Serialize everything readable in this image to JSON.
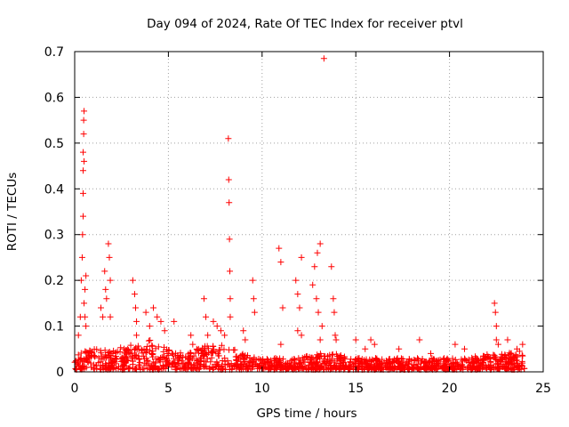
{
  "chart_data": {
    "type": "scatter",
    "title": "Day 094 of 2024, Rate Of TEC Index for receiver ptvl",
    "xlabel": "GPS time / hours",
    "ylabel": "ROTI / TECUs",
    "xlim": [
      0,
      25
    ],
    "ylim": [
      0,
      0.7
    ],
    "xticks": [
      "0",
      "5",
      "10",
      "15",
      "20",
      "25"
    ],
    "yticks": [
      "0",
      "0.1",
      "0.2",
      "0.3",
      "0.4",
      "0.5",
      "0.6",
      "0.7"
    ],
    "grid": true,
    "marker": "+",
    "color": "#ff0000",
    "series": [
      {
        "name": "ROTI",
        "points": [
          [
            0.2,
            0.08
          ],
          [
            0.3,
            0.12
          ],
          [
            0.35,
            0.2
          ],
          [
            0.4,
            0.25
          ],
          [
            0.42,
            0.3
          ],
          [
            0.45,
            0.34
          ],
          [
            0.45,
            0.39
          ],
          [
            0.45,
            0.44
          ],
          [
            0.45,
            0.48
          ],
          [
            0.48,
            0.52
          ],
          [
            0.48,
            0.55
          ],
          [
            0.5,
            0.57
          ],
          [
            0.5,
            0.46
          ],
          [
            0.5,
            0.15
          ],
          [
            0.55,
            0.18
          ],
          [
            0.55,
            0.12
          ],
          [
            0.6,
            0.1
          ],
          [
            0.6,
            0.21
          ],
          [
            1.4,
            0.14
          ],
          [
            1.5,
            0.12
          ],
          [
            1.6,
            0.22
          ],
          [
            1.65,
            0.18
          ],
          [
            1.7,
            0.16
          ],
          [
            1.8,
            0.28
          ],
          [
            1.85,
            0.25
          ],
          [
            1.9,
            0.2
          ],
          [
            1.9,
            0.12
          ],
          [
            3.1,
            0.2
          ],
          [
            3.2,
            0.17
          ],
          [
            3.25,
            0.14
          ],
          [
            3.3,
            0.11
          ],
          [
            3.3,
            0.08
          ],
          [
            3.8,
            0.13
          ],
          [
            4.0,
            0.1
          ],
          [
            4.2,
            0.14
          ],
          [
            4.4,
            0.12
          ],
          [
            4.6,
            0.11
          ],
          [
            4.8,
            0.09
          ],
          [
            5.3,
            0.11
          ],
          [
            6.2,
            0.08
          ],
          [
            6.3,
            0.06
          ],
          [
            6.9,
            0.16
          ],
          [
            7.0,
            0.12
          ],
          [
            7.1,
            0.08
          ],
          [
            7.4,
            0.11
          ],
          [
            7.6,
            0.1
          ],
          [
            7.8,
            0.09
          ],
          [
            8.0,
            0.08
          ],
          [
            8.2,
            0.51
          ],
          [
            8.22,
            0.42
          ],
          [
            8.24,
            0.37
          ],
          [
            8.26,
            0.29
          ],
          [
            8.28,
            0.22
          ],
          [
            8.3,
            0.16
          ],
          [
            8.3,
            0.12
          ],
          [
            9.0,
            0.09
          ],
          [
            9.1,
            0.07
          ],
          [
            9.5,
            0.2
          ],
          [
            9.55,
            0.16
          ],
          [
            9.6,
            0.13
          ],
          [
            10.9,
            0.27
          ],
          [
            11.0,
            0.24
          ],
          [
            11.1,
            0.14
          ],
          [
            11.0,
            0.06
          ],
          [
            11.8,
            0.2
          ],
          [
            11.9,
            0.17
          ],
          [
            12.0,
            0.14
          ],
          [
            12.1,
            0.25
          ],
          [
            12.1,
            0.08
          ],
          [
            11.9,
            0.09
          ],
          [
            12.7,
            0.19
          ],
          [
            12.8,
            0.23
          ],
          [
            12.9,
            0.16
          ],
          [
            12.95,
            0.26
          ],
          [
            13.0,
            0.13
          ],
          [
            13.1,
            0.28
          ],
          [
            13.2,
            0.1
          ],
          [
            13.1,
            0.07
          ],
          [
            13.3,
            0.685
          ],
          [
            13.7,
            0.23
          ],
          [
            13.8,
            0.16
          ],
          [
            13.85,
            0.13
          ],
          [
            13.9,
            0.08
          ],
          [
            13.95,
            0.07
          ],
          [
            15.0,
            0.07
          ],
          [
            15.5,
            0.05
          ],
          [
            15.8,
            0.07
          ],
          [
            16.0,
            0.06
          ],
          [
            17.3,
            0.05
          ],
          [
            18.4,
            0.07
          ],
          [
            19.0,
            0.04
          ],
          [
            20.3,
            0.06
          ],
          [
            20.8,
            0.05
          ],
          [
            22.4,
            0.15
          ],
          [
            22.45,
            0.13
          ],
          [
            22.5,
            0.1
          ],
          [
            22.5,
            0.07
          ],
          [
            22.6,
            0.06
          ],
          [
            23.1,
            0.07
          ],
          [
            23.6,
            0.05
          ],
          [
            23.9,
            0.06
          ]
        ],
        "baseline_envelope": {
          "x": [
            0,
            1,
            2,
            3,
            4,
            5,
            6,
            7,
            8,
            9,
            10,
            11,
            12,
            13,
            14,
            15,
            16,
            17,
            18,
            19,
            20,
            21,
            22,
            23,
            24
          ],
          "low": [
            0.005,
            0.005,
            0.005,
            0.005,
            0.005,
            0.005,
            0.005,
            0.005,
            0.005,
            0.005,
            0.005,
            0.005,
            0.005,
            0.005,
            0.005,
            0.005,
            0.005,
            0.005,
            0.005,
            0.005,
            0.005,
            0.005,
            0.005,
            0.005,
            0.005
          ],
          "high": [
            0.06,
            0.05,
            0.05,
            0.06,
            0.07,
            0.05,
            0.04,
            0.06,
            0.06,
            0.04,
            0.03,
            0.03,
            0.03,
            0.04,
            0.04,
            0.03,
            0.03,
            0.03,
            0.03,
            0.03,
            0.03,
            0.03,
            0.04,
            0.04,
            0.05
          ]
        }
      }
    ]
  }
}
